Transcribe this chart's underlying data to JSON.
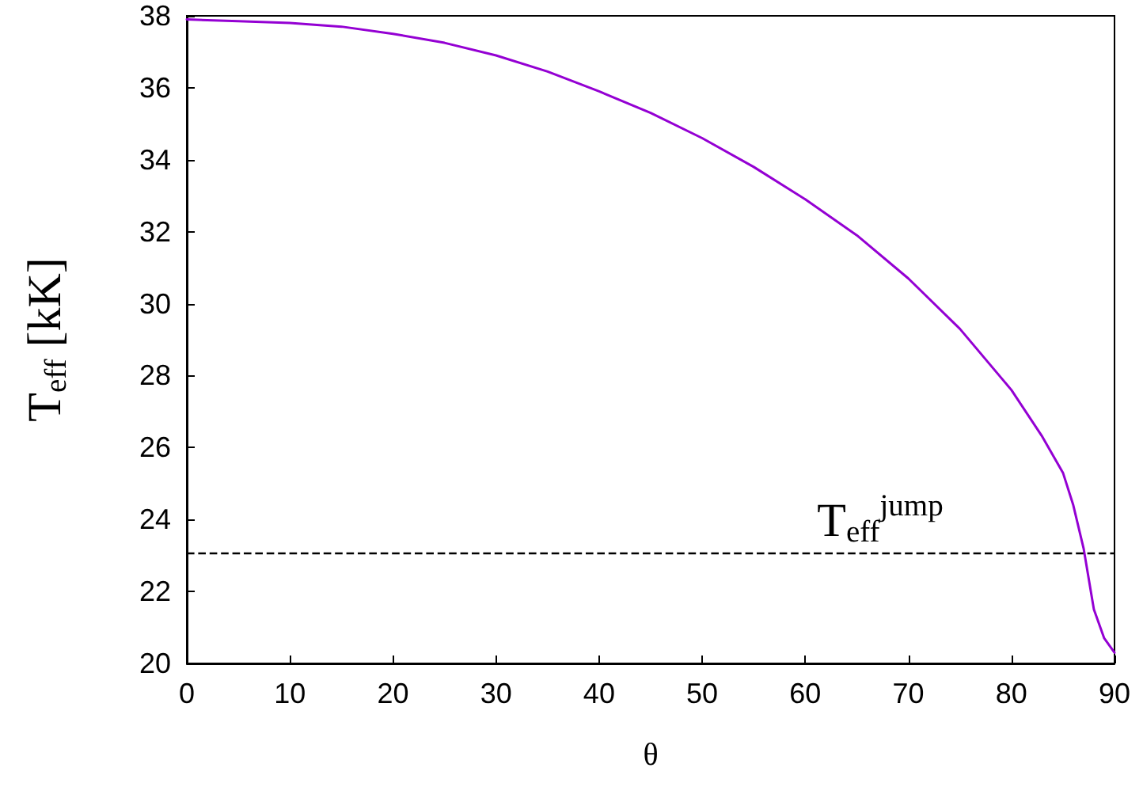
{
  "chart_data": {
    "type": "line",
    "xlabel": "θ",
    "ylabel": "T$_{eff}$ [kK]",
    "x": [
      0,
      5,
      10,
      15,
      20,
      25,
      30,
      35,
      40,
      45,
      50,
      55,
      60,
      65,
      70,
      75,
      80,
      83,
      85,
      86,
      87,
      88,
      89,
      90
    ],
    "series": [
      {
        "color": "#9400d3",
        "values": [
          37.9,
          37.85,
          37.8,
          37.7,
          37.5,
          37.25,
          36.9,
          36.45,
          35.9,
          35.3,
          34.6,
          33.8,
          32.9,
          31.9,
          30.7,
          29.3,
          27.6,
          26.3,
          25.3,
          24.4,
          23.2,
          21.5,
          20.7,
          20.3
        ]
      }
    ],
    "xlim": [
      0,
      90
    ],
    "xticks": [
      0,
      10,
      20,
      30,
      40,
      50,
      60,
      70,
      80,
      90
    ],
    "ylim": [
      20,
      38
    ],
    "yticks": [
      20,
      22,
      24,
      26,
      28,
      30,
      32,
      34,
      36,
      38
    ],
    "ref_lines": [
      {
        "axis": "y",
        "value": 23.05,
        "color": "#000000",
        "line_style": "dashed"
      }
    ],
    "annotations": [
      "T$_{eff}$$^{jump}$"
    ],
    "grid": false,
    "marker": "none",
    "line_style": "solid"
  }
}
